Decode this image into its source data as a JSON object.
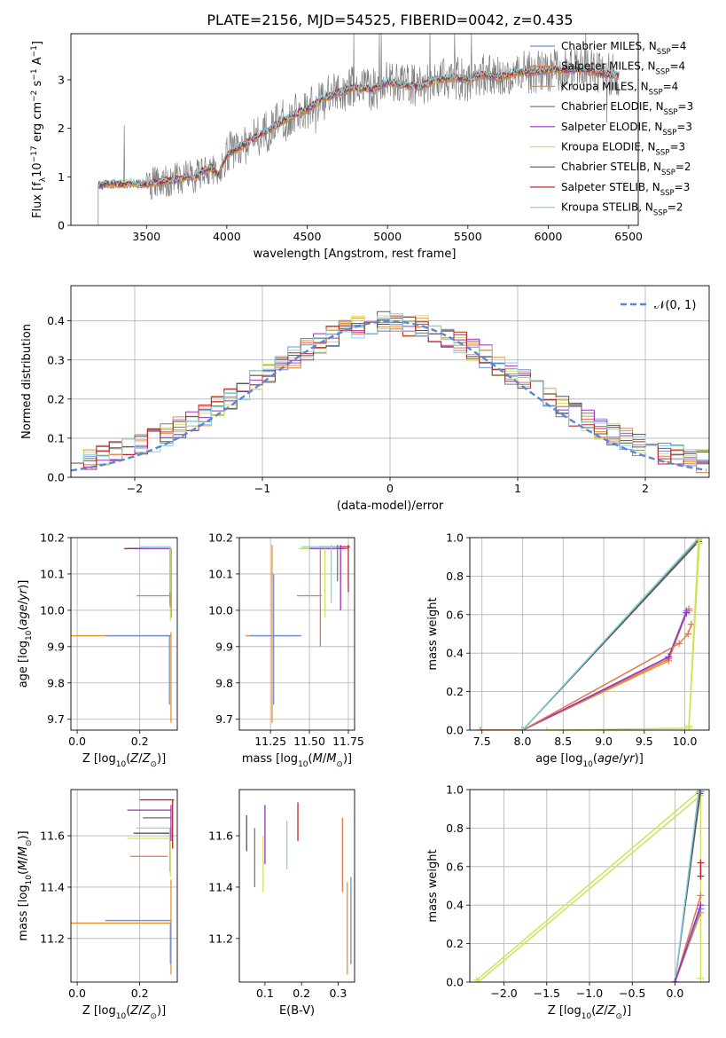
{
  "figure": {
    "title": "PLATE=2156, MJD=54525, FIBERID=0042, z=0.435"
  },
  "series_styles": [
    {
      "name": "Chabrier MILES, N_SSP=4",
      "color": "#6f8fd6"
    },
    {
      "name": "Salpeter MILES, N_SSP=4",
      "color": "#e07a4a"
    },
    {
      "name": "Kroupa MILES, N_SSP=4",
      "color": "#e8902c"
    },
    {
      "name": "Chabrier ELODIE, N_SSP=3",
      "color": "#7a7a7a"
    },
    {
      "name": "Salpeter ELODIE, N_SSP=3",
      "color": "#9b30c2"
    },
    {
      "name": "Kroupa ELODIE, N_SSP=3",
      "color": "#d2e05a"
    },
    {
      "name": "Chabrier STELIB, N_SSP=2",
      "color": "#555555"
    },
    {
      "name": "Salpeter STELIB, N_SSP=3",
      "color": "#c0262b"
    },
    {
      "name": "Kroupa STELIB, N_SSP=2",
      "color": "#86d2de"
    }
  ],
  "chart_data": [
    {
      "id": "spectrum",
      "type": "line",
      "xlabel": "wavelength [Angstrom, rest frame]",
      "ylabel": "Flux [fλ10⁻¹⁷ erg cm⁻² s⁻¹ A⁻¹]",
      "xlim": [
        3030,
        6560
      ],
      "ylim": [
        0,
        3.95
      ],
      "xticks": [
        "3500",
        "4000",
        "4500",
        "5000",
        "5500",
        "6000",
        "6500"
      ],
      "yticks": [
        "0",
        "1",
        "2",
        "3"
      ],
      "grid": false,
      "legend": "right",
      "legend_entries": [
        {
          "pre": "Chabrier MILES, N",
          "sub": "SSP",
          "post": "=4"
        },
        {
          "pre": "Salpeter MILES, N",
          "sub": "SSP",
          "post": "=4"
        },
        {
          "pre": "Kroupa MILES, N",
          "sub": "SSP",
          "post": "=4"
        },
        {
          "pre": "Chabrier ELODIE, N",
          "sub": "SSP",
          "post": "=3"
        },
        {
          "pre": "Salpeter ELODIE, N",
          "sub": "SSP",
          "post": "=3"
        },
        {
          "pre": "Kroupa ELODIE, N",
          "sub": "SSP",
          "post": "=3"
        },
        {
          "pre": "Chabrier STELIB, N",
          "sub": "SSP",
          "post": "=2"
        },
        {
          "pre": "Salpeter STELIB, N",
          "sub": "SSP",
          "post": "=3"
        },
        {
          "pre": "Kroupa STELIB, N",
          "sub": "SSP",
          "post": "=2"
        }
      ],
      "continuum": {
        "x": [
          3200,
          3250,
          3300,
          3350,
          3400,
          3450,
          3500,
          3550,
          3600,
          3650,
          3700,
          3750,
          3800,
          3850,
          3900,
          3950,
          4000,
          4100,
          4200,
          4300,
          4400,
          4500,
          4600,
          4700,
          4800,
          4900,
          5000,
          5100,
          5200,
          5300,
          5400,
          5500,
          5600,
          5700,
          5800,
          5900,
          6000,
          6100,
          6200,
          6300,
          6400
        ],
        "y": [
          0.82,
          0.85,
          0.86,
          0.84,
          0.87,
          0.86,
          0.85,
          0.88,
          0.9,
          0.92,
          0.95,
          1.0,
          0.98,
          1.12,
          1.18,
          1.05,
          1.45,
          1.65,
          1.85,
          2.05,
          2.25,
          2.4,
          2.6,
          2.75,
          2.85,
          2.8,
          2.95,
          2.9,
          2.85,
          3.0,
          3.05,
          3.0,
          3.1,
          3.05,
          3.15,
          3.15,
          3.2,
          3.2,
          3.22,
          3.15,
          3.1
        ]
      }
    },
    {
      "id": "residuals",
      "type": "line",
      "xlabel": "(data-model)/error",
      "ylabel": "Normed distribution",
      "xlim": [
        -2.5,
        2.5
      ],
      "ylim": [
        0,
        0.49
      ],
      "xticks": [
        -2,
        -1,
        0,
        1,
        2
      ],
      "yticks": [
        0,
        0.1,
        0.2,
        0.3,
        0.4
      ],
      "grid": true,
      "legend": "top-right",
      "legend_label": "𝒩(0, 1)",
      "bin_width": 0.1,
      "reference": {
        "name": "N(0,1)",
        "mean": 0,
        "sigma": 1,
        "color": "#5b86d6"
      }
    },
    {
      "id": "age-vs-Z",
      "type": "scatter",
      "xlabel": "Z [log10(Z/Z⊙)]",
      "ylabel": "age [log10(age/yr)]",
      "xlim": [
        -0.02,
        0.32
      ],
      "ylim": [
        9.67,
        10.2
      ],
      "xticks": [
        0.0,
        0.2
      ],
      "yticks": [
        9.7,
        9.8,
        9.9,
        10.0,
        10.1,
        10.2
      ],
      "grid": true,
      "segments": [
        {
          "s": 2,
          "type": "h",
          "at": 9.93,
          "from": -0.02,
          "to": 0.3
        },
        {
          "s": 0,
          "type": "h",
          "at": 9.93,
          "from": 0.09,
          "to": 0.3
        },
        {
          "s": 2,
          "type": "v",
          "at": 0.3,
          "from": 9.69,
          "to": 9.94
        },
        {
          "s": 0,
          "type": "v",
          "at": 0.295,
          "from": 9.74,
          "to": 9.93
        },
        {
          "s": 3,
          "type": "h",
          "at": 10.17,
          "from": 0.17,
          "to": 0.3
        },
        {
          "s": 7,
          "type": "h",
          "at": 10.17,
          "from": 0.15,
          "to": 0.3
        },
        {
          "s": 6,
          "type": "h",
          "at": 10.17,
          "from": 0.16,
          "to": 0.3
        },
        {
          "s": 8,
          "type": "h",
          "at": 10.175,
          "from": 0.2,
          "to": 0.3
        },
        {
          "s": 5,
          "type": "h",
          "at": 10.17,
          "from": 0.21,
          "to": 0.3
        },
        {
          "s": 4,
          "type": "h",
          "at": 10.17,
          "from": 0.19,
          "to": 0.3
        },
        {
          "s": 1,
          "type": "h",
          "at": 10.04,
          "from": 0.19,
          "to": 0.3
        },
        {
          "s": 3,
          "type": "v",
          "at": 0.3,
          "from": 9.98,
          "to": 10.17
        },
        {
          "s": 5,
          "type": "v",
          "at": 0.298,
          "from": 9.97,
          "to": 10.17
        },
        {
          "s": 8,
          "type": "v",
          "at": 0.296,
          "from": 10.02,
          "to": 10.17
        },
        {
          "s": 1,
          "type": "v",
          "at": 0.297,
          "from": 10.01,
          "to": 10.05
        }
      ]
    },
    {
      "id": "age-vs-mass",
      "type": "scatter",
      "xlabel": "mass [log10(M/M⊙)]",
      "ylabel": "",
      "xlim": [
        11.05,
        11.79
      ],
      "ylim": [
        9.67,
        10.2
      ],
      "xticks": [
        11.25,
        11.5,
        11.75
      ],
      "yticks": [
        9.7,
        9.8,
        9.9,
        10.0,
        10.1,
        10.2
      ],
      "grid": true,
      "segments": [
        {
          "s": 2,
          "type": "h",
          "at": 9.93,
          "from": 11.09,
          "to": 11.44
        },
        {
          "s": 0,
          "type": "h",
          "at": 9.93,
          "from": 11.12,
          "to": 11.45
        },
        {
          "s": 2,
          "type": "v",
          "at": 11.26,
          "from": 9.69,
          "to": 10.18
        },
        {
          "s": 0,
          "type": "v",
          "at": 11.27,
          "from": 9.74,
          "to": 10.1
        },
        {
          "s": 3,
          "type": "h",
          "at": 10.17,
          "from": 11.5,
          "to": 11.75
        },
        {
          "s": 7,
          "type": "h",
          "at": 10.175,
          "from": 11.56,
          "to": 11.76
        },
        {
          "s": 6,
          "type": "h",
          "at": 10.17,
          "from": 11.45,
          "to": 11.72
        },
        {
          "s": 8,
          "type": "h",
          "at": 10.175,
          "from": 11.45,
          "to": 11.7
        },
        {
          "s": 5,
          "type": "h",
          "at": 10.17,
          "from": 11.43,
          "to": 11.67
        },
        {
          "s": 4,
          "type": "h",
          "at": 10.17,
          "from": 11.5,
          "to": 11.73
        },
        {
          "s": 1,
          "type": "h",
          "at": 10.04,
          "from": 11.42,
          "to": 11.58
        },
        {
          "s": 7,
          "type": "v",
          "at": 11.75,
          "from": 10.05,
          "to": 10.18
        },
        {
          "s": 3,
          "type": "v",
          "at": 11.68,
          "from": 10.08,
          "to": 10.18
        },
        {
          "s": 4,
          "type": "v",
          "at": 11.7,
          "from": 10.0,
          "to": 10.18
        },
        {
          "s": 8,
          "type": "v",
          "at": 11.64,
          "from": 10.02,
          "to": 10.18
        },
        {
          "s": 5,
          "type": "v",
          "at": 11.6,
          "from": 9.98,
          "to": 10.17
        },
        {
          "s": 1,
          "type": "v",
          "at": 11.57,
          "from": 9.9,
          "to": 10.17
        }
      ]
    },
    {
      "id": "mass-weight-vs-age",
      "type": "line",
      "xlabel": "age [log10(age/yr)]",
      "ylabel": "mass weight",
      "xlim": [
        7.35,
        10.3
      ],
      "ylim": [
        0,
        1.0
      ],
      "xticks": [
        7.5,
        8.0,
        8.5,
        9.0,
        9.5,
        10.0
      ],
      "yticks": [
        0.0,
        0.2,
        0.4,
        0.6,
        0.8,
        1.0
      ],
      "grid": true,
      "series": [
        {
          "s": 2,
          "x": [
            7.48,
            8.0,
            9.8,
            10.02,
            10.05
          ],
          "y": [
            0.0,
            0.0,
            0.36,
            0.61,
            0.62
          ]
        },
        {
          "s": 1,
          "x": [
            7.48,
            8.0,
            9.8,
            10.02,
            10.05
          ],
          "y": [
            0.0,
            0.0,
            0.37,
            0.62,
            0.63
          ]
        },
        {
          "s": 0,
          "x": [
            8.0,
            9.8,
            10.02
          ],
          "y": [
            0.0,
            0.38,
            0.62
          ]
        },
        {
          "s": 4,
          "x": [
            8.0,
            9.8,
            10.02
          ],
          "y": [
            0.0,
            0.38,
            0.61
          ]
        },
        {
          "s": 1,
          "x": [
            8.0,
            9.93,
            10.04,
            10.08
          ],
          "y": [
            0.0,
            0.45,
            0.5,
            0.55
          ]
        },
        {
          "s": 3,
          "x": [
            8.0,
            10.17
          ],
          "y": [
            0.0,
            0.99
          ]
        },
        {
          "s": 6,
          "x": [
            8.0,
            10.17
          ],
          "y": [
            0.0,
            0.98
          ]
        },
        {
          "s": 8,
          "x": [
            8.0,
            10.17
          ],
          "y": [
            0.0,
            1.0
          ]
        },
        {
          "s": 5,
          "x": [
            8.3,
            10.05,
            10.18,
            10.17
          ],
          "y": [
            0.0,
            0.01,
            0.97,
            0.99
          ]
        },
        {
          "s": 5,
          "x": [
            10.05,
            10.17
          ],
          "y": [
            0.02,
            1.0
          ]
        }
      ]
    },
    {
      "id": "mass-vs-Z",
      "type": "scatter",
      "xlabel": "Z [log10(Z/Z⊙)]",
      "ylabel": "mass [log10(M/M⊙)]",
      "xlim": [
        -0.02,
        0.32
      ],
      "ylim": [
        11.03,
        11.78
      ],
      "xticks": [
        0.0,
        0.2
      ],
      "yticks": [
        11.2,
        11.4,
        11.6
      ],
      "grid": true,
      "segments": [
        {
          "s": 2,
          "type": "h",
          "at": 11.26,
          "from": -0.02,
          "to": 0.3
        },
        {
          "s": 0,
          "type": "h",
          "at": 11.27,
          "from": 0.09,
          "to": 0.3
        },
        {
          "s": 2,
          "type": "v",
          "at": 0.3,
          "from": 11.06,
          "to": 11.43
        },
        {
          "s": 0,
          "type": "v",
          "at": 0.298,
          "from": 11.1,
          "to": 11.26
        },
        {
          "s": 7,
          "type": "h",
          "at": 11.74,
          "from": 0.2,
          "to": 0.31
        },
        {
          "s": 4,
          "type": "h",
          "at": 11.7,
          "from": 0.16,
          "to": 0.3
        },
        {
          "s": 3,
          "type": "h",
          "at": 11.67,
          "from": 0.21,
          "to": 0.3
        },
        {
          "s": 8,
          "type": "h",
          "at": 11.63,
          "from": 0.19,
          "to": 0.3
        },
        {
          "s": 6,
          "type": "h",
          "at": 11.61,
          "from": 0.18,
          "to": 0.3
        },
        {
          "s": 5,
          "type": "h",
          "at": 11.59,
          "from": 0.16,
          "to": 0.3
        },
        {
          "s": 1,
          "type": "h",
          "at": 11.52,
          "from": 0.17,
          "to": 0.29
        },
        {
          "s": 7,
          "type": "v",
          "at": 0.305,
          "from": 11.55,
          "to": 11.74
        },
        {
          "s": 5,
          "type": "v",
          "at": 0.298,
          "from": 11.44,
          "to": 11.63
        },
        {
          "s": 8,
          "type": "v",
          "at": 0.296,
          "from": 11.46,
          "to": 11.63
        },
        {
          "s": 4,
          "type": "v",
          "at": 0.3,
          "from": 11.58,
          "to": 11.72
        }
      ]
    },
    {
      "id": "mass-vs-ebv",
      "type": "scatter",
      "xlabel": "E(B-V)",
      "ylabel": "",
      "xlim": [
        0.03,
        0.345
      ],
      "ylim": [
        11.03,
        11.78
      ],
      "xticks": [
        0.1,
        0.2,
        0.3
      ],
      "yticks": [
        11.2,
        11.4,
        11.6
      ],
      "grid": false,
      "segments": [
        {
          "s": 6,
          "type": "v",
          "at": 0.05,
          "from": 11.54,
          "to": 11.68
        },
        {
          "s": 3,
          "type": "v",
          "at": 0.072,
          "from": 11.4,
          "to": 11.63
        },
        {
          "s": 5,
          "type": "v",
          "at": 0.095,
          "from": 11.38,
          "to": 11.6
        },
        {
          "s": 4,
          "type": "v",
          "at": 0.1,
          "from": 11.49,
          "to": 11.72
        },
        {
          "s": 8,
          "type": "v",
          "at": 0.16,
          "from": 11.47,
          "to": 11.66
        },
        {
          "s": 7,
          "type": "v",
          "at": 0.19,
          "from": 11.58,
          "to": 11.73
        },
        {
          "s": 1,
          "type": "v",
          "at": 0.312,
          "from": 11.38,
          "to": 11.67
        },
        {
          "s": 2,
          "type": "v",
          "at": 0.325,
          "from": 11.06,
          "to": 11.42
        },
        {
          "s": 0,
          "type": "v",
          "at": 0.335,
          "from": 11.1,
          "to": 11.44
        }
      ]
    },
    {
      "id": "mass-weight-vs-Z",
      "type": "line",
      "xlabel": "Z [log10(Z/Z⊙)]",
      "ylabel": "mass weight",
      "xlim": [
        -2.4,
        0.4
      ],
      "ylim": [
        0,
        1.0
      ],
      "xticks": [
        -2.0,
        -1.5,
        -1.0,
        -0.5,
        0.0
      ],
      "yticks": [
        0.0,
        0.2,
        0.4,
        0.6,
        0.8,
        1.0
      ],
      "grid": true,
      "series": [
        {
          "s": 5,
          "x": [
            -2.3,
            0.3,
            0.3
          ],
          "y": [
            0.0,
            0.97,
            0.02
          ]
        },
        {
          "s": 5,
          "x": [
            -2.32,
            0.28
          ],
          "y": [
            0.01,
            0.99
          ]
        },
        {
          "s": 3,
          "x": [
            0.0,
            0.3
          ],
          "y": [
            0.0,
            0.99
          ]
        },
        {
          "s": 6,
          "x": [
            0.0,
            0.29
          ],
          "y": [
            0.0,
            0.98
          ]
        },
        {
          "s": 8,
          "x": [
            0.0,
            0.28
          ],
          "y": [
            0.0,
            1.0
          ]
        },
        {
          "s": 2,
          "x": [
            0.0,
            0.3
          ],
          "y": [
            0.0,
            0.36
          ]
        },
        {
          "s": 1,
          "x": [
            0.0,
            0.3
          ],
          "y": [
            0.0,
            0.45
          ]
        },
        {
          "s": 0,
          "x": [
            0.0,
            0.3
          ],
          "y": [
            0.0,
            0.38
          ]
        },
        {
          "s": 4,
          "x": [
            0.0,
            0.3
          ],
          "y": [
            0.0,
            0.4
          ]
        },
        {
          "s": 7,
          "x": [
            0.3,
            0.3
          ],
          "y": [
            0.55,
            0.62
          ]
        }
      ]
    }
  ]
}
